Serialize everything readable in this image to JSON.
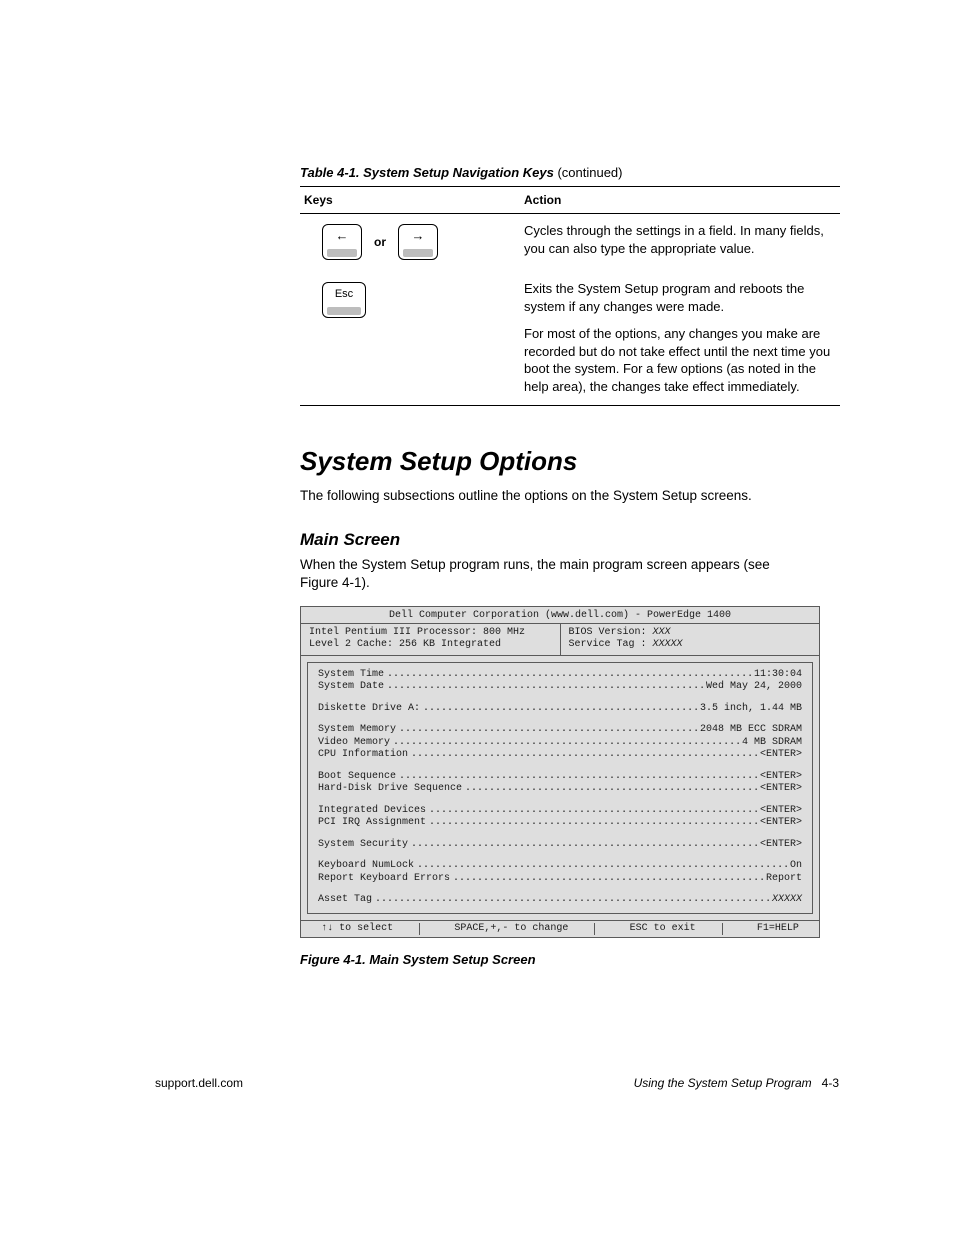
{
  "table": {
    "caption_main": "Table 4-1.  System Setup Navigation Keys",
    "caption_cont": " (continued)",
    "head_keys": "Keys",
    "head_action": "Action",
    "or_label": "or",
    "arrow_left": "←",
    "arrow_right": "→",
    "esc_label": "Esc",
    "row1_action": "Cycles through the settings in a field. In many fields, you can also type the appropriate value.",
    "row2_action_p1": "Exits the System Setup program and reboots the system if any changes were made.",
    "row2_action_p2": "For most of the options, any changes you make are recorded but do not take effect until the next time you boot the system. For a few options (as noted in the help area), the changes take effect immediately."
  },
  "section_heading": "System Setup Options",
  "section_intro": "The following subsections outline the options on the System Setup screens.",
  "sub_heading": "Main Screen",
  "sub_intro": "When the System Setup program runs, the main program screen appears (see Figure 4-1).",
  "bios": {
    "title": "Dell Computer Corporation (www.dell.com) - PowerEdge 1400",
    "header_left_l1": "Intel Pentium III Processor: 800 MHz",
    "header_left_l2": "Level 2 Cache: 256 KB Integrated",
    "header_right_l1_lbl": "BIOS Version: ",
    "header_right_l1_val": "XXX",
    "header_right_l2_lbl": "Service Tag : ",
    "header_right_l2_val": "XXXXX",
    "groups": [
      [
        {
          "lbl": "System Time",
          "val": "11:30:04"
        },
        {
          "lbl": "System Date",
          "val": "Wed May 24, 2000"
        }
      ],
      [
        {
          "lbl": "Diskette Drive A:",
          "val": "3.5 inch, 1.44 MB"
        }
      ],
      [
        {
          "lbl": "System Memory",
          "val": "2048 MB ECC SDRAM"
        },
        {
          "lbl": "Video Memory",
          "val": "4 MB SDRAM"
        },
        {
          "lbl": "CPU Information",
          "val": "<ENTER>"
        }
      ],
      [
        {
          "lbl": "Boot Sequence",
          "val": "<ENTER>"
        },
        {
          "lbl": "Hard-Disk Drive Sequence",
          "val": "<ENTER>"
        }
      ],
      [
        {
          "lbl": "Integrated Devices",
          "val": "<ENTER>"
        },
        {
          "lbl": "PCI IRQ Assignment",
          "val": "<ENTER>"
        }
      ],
      [
        {
          "lbl": "System Security",
          "val": "<ENTER>"
        }
      ],
      [
        {
          "lbl": "Keyboard NumLock",
          "val": "On"
        },
        {
          "lbl": "Report Keyboard Errors",
          "val": "Report"
        }
      ],
      [
        {
          "lbl": "Asset Tag",
          "val": "XXXXX",
          "italic": true
        }
      ]
    ],
    "footer": {
      "a": "↑↓ to select",
      "b": "SPACE,+,- to change",
      "c": "ESC to exit",
      "d": "F1=HELP"
    }
  },
  "figure_caption": "Figure 4-1.  Main System Setup Screen",
  "footer": {
    "left": "support.dell.com",
    "right_title": "Using the System Setup Program",
    "right_page": "4-3"
  }
}
